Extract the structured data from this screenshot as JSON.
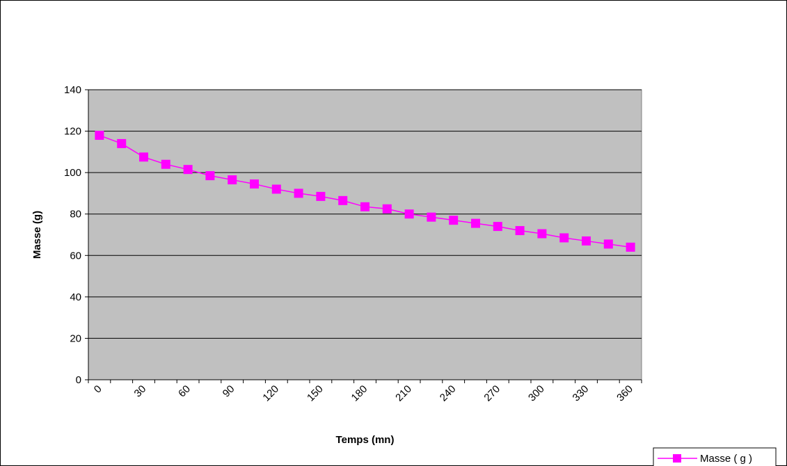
{
  "chart_data": {
    "type": "line",
    "xlabel": "Temps (mn)",
    "ylabel": "Masse (g)",
    "ylim": [
      0,
      140
    ],
    "yticks": [
      0,
      20,
      40,
      60,
      80,
      100,
      120,
      140
    ],
    "x_tick_labels": [
      "0",
      "30",
      "60",
      "90",
      "120",
      "150",
      "180",
      "210",
      "240",
      "270",
      "300",
      "330",
      "360"
    ],
    "x": [
      0,
      15,
      30,
      45,
      60,
      75,
      90,
      105,
      120,
      135,
      150,
      165,
      180,
      195,
      210,
      225,
      240,
      255,
      270,
      285,
      300,
      315,
      330,
      345,
      360
    ],
    "series": [
      {
        "name": "Masse ( g )",
        "color": "#ff00ff",
        "marker": "square",
        "values": [
          118,
          114,
          107.5,
          104,
          101.5,
          98.5,
          96.5,
          94.5,
          92,
          90,
          88.5,
          86.5,
          83.5,
          82.5,
          80,
          78.5,
          77,
          75.5,
          74,
          72,
          70.5,
          68.5,
          67,
          65.5,
          64
        ]
      }
    ],
    "plot_background": "#c0c0c0",
    "grid": true,
    "legend_position": "bottom-right"
  }
}
